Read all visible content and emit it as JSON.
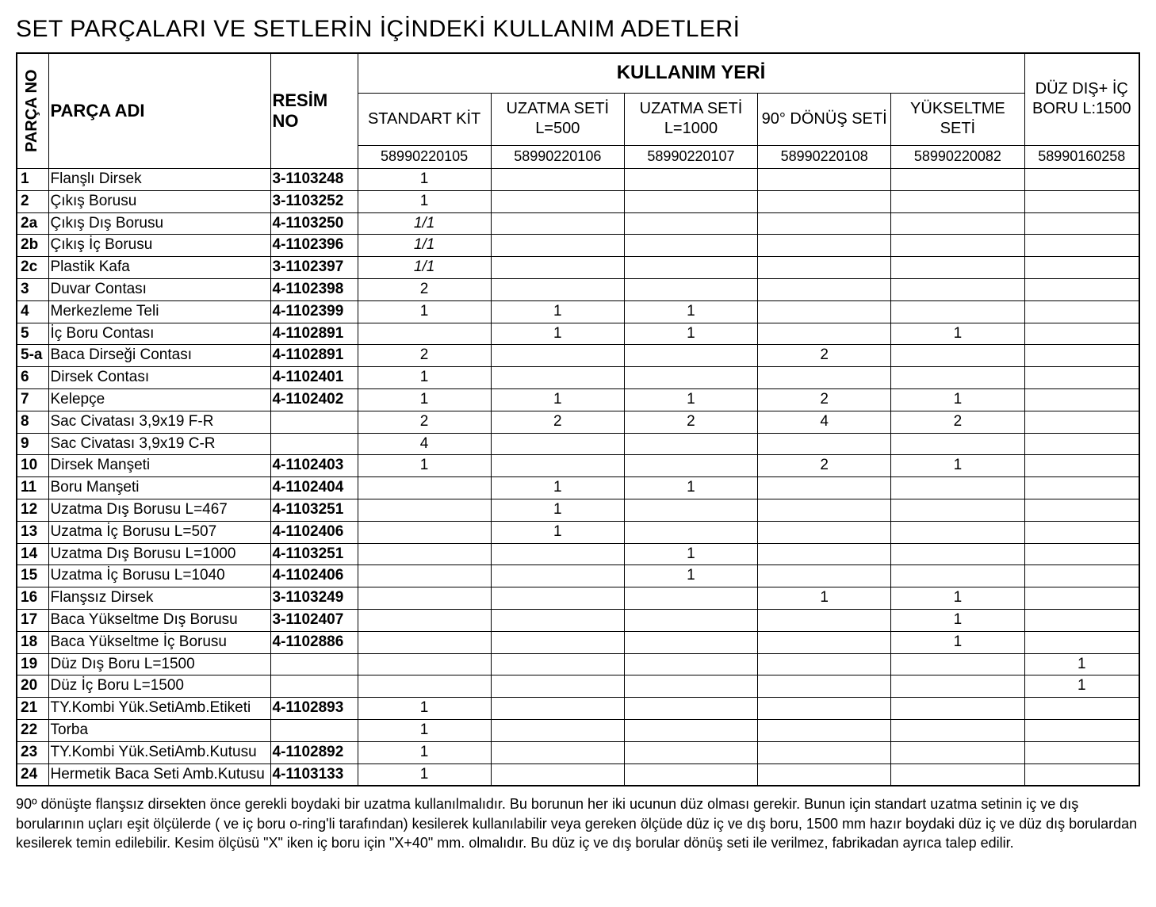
{
  "title": "SET PARÇALARI VE SETLERİN İÇİNDEKİ KULLANIM ADETLERİ",
  "headers": {
    "parca_no": "PARÇA NO",
    "parca_adi": "PARÇA ADI",
    "resim_no": "RESİM NO",
    "kullanim_yeri": "KULLANIM YERİ",
    "col1": "STANDART KİT",
    "col2": "UZATMA SETİ L=500",
    "col3": "UZATMA SETİ L=1000",
    "col4": "90° DÖNÜŞ SETİ",
    "col5": "YÜKSELTME SETİ",
    "col6": "DÜZ DIŞ+ İÇ BORU L:1500"
  },
  "codes": {
    "c1": "58990220105",
    "c2": "58990220106",
    "c3": "58990220107",
    "c4": "58990220108",
    "c5": "58990220082",
    "c6": "58990160258"
  },
  "rows": [
    {
      "no": "1",
      "name": "Flanşlı Dirsek",
      "resim": "3-1103248",
      "q": [
        "1",
        "",
        "",
        "",
        "",
        ""
      ]
    },
    {
      "no": "2",
      "name": "Çıkış Borusu",
      "resim": "3-1103252",
      "q": [
        "1",
        "",
        "",
        "",
        "",
        ""
      ]
    },
    {
      "no": "2a",
      "name": "Çıkış Dış Borusu",
      "resim": "4-1103250",
      "q": [
        "1/1",
        "",
        "",
        "",
        "",
        ""
      ],
      "ital": true
    },
    {
      "no": "2b",
      "name": "Çıkış İç Borusu",
      "resim": "4-1102396",
      "q": [
        "1/1",
        "",
        "",
        "",
        "",
        ""
      ],
      "ital": true
    },
    {
      "no": "2c",
      "name": "Plastik Kafa",
      "resim": "3-1102397",
      "q": [
        "1/1",
        "",
        "",
        "",
        "",
        ""
      ],
      "ital": true
    },
    {
      "no": "3",
      "name": "Duvar Contası",
      "resim": "4-1102398",
      "q": [
        "2",
        "",
        "",
        "",
        "",
        ""
      ]
    },
    {
      "no": "4",
      "name": "Merkezleme Teli",
      "resim": "4-1102399",
      "q": [
        "1",
        "1",
        "1",
        "",
        "",
        ""
      ]
    },
    {
      "no": "5",
      "name": "İç Boru Contası",
      "resim": "4-1102891",
      "q": [
        "",
        "1",
        "1",
        "",
        "1",
        ""
      ]
    },
    {
      "no": "5-a",
      "name": "Baca Dirseği Contası",
      "resim": "4-1102891",
      "q": [
        "2",
        "",
        "",
        "2",
        "",
        ""
      ]
    },
    {
      "no": "6",
      "name": "Dirsek Contası",
      "resim": "4-1102401",
      "q": [
        "1",
        "",
        "",
        "",
        "",
        ""
      ]
    },
    {
      "no": "7",
      "name": "Kelepçe",
      "resim": "4-1102402",
      "q": [
        "1",
        "1",
        "1",
        "2",
        "1",
        ""
      ]
    },
    {
      "no": "8",
      "name": "Sac Civatası 3,9x19 F-R",
      "resim": "",
      "q": [
        "2",
        "2",
        "2",
        "4",
        "2",
        ""
      ]
    },
    {
      "no": "9",
      "name": "Sac Civatası 3,9x19 C-R",
      "resim": "",
      "q": [
        "4",
        "",
        "",
        "",
        "",
        ""
      ]
    },
    {
      "no": "10",
      "name": "Dirsek Manşeti",
      "resim": "4-1102403",
      "q": [
        "1",
        "",
        "",
        "2",
        "1",
        ""
      ]
    },
    {
      "no": "11",
      "name": "Boru Manşeti",
      "resim": "4-1102404",
      "q": [
        "",
        "1",
        "1",
        "",
        "",
        ""
      ]
    },
    {
      "no": "12",
      "name": "Uzatma Dış Borusu L=467",
      "resim": "4-1103251",
      "q": [
        "",
        "1",
        "",
        "",
        "",
        ""
      ]
    },
    {
      "no": "13",
      "name": "Uzatma İç Borusu L=507",
      "resim": "4-1102406",
      "q": [
        "",
        "1",
        "",
        "",
        "",
        ""
      ]
    },
    {
      "no": "14",
      "name": "Uzatma Dış Borusu L=1000",
      "resim": "4-1103251",
      "q": [
        "",
        "",
        "1",
        "",
        "",
        ""
      ]
    },
    {
      "no": "15",
      "name": "Uzatma İç Borusu L=1040",
      "resim": "4-1102406",
      "q": [
        "",
        "",
        "1",
        "",
        "",
        ""
      ]
    },
    {
      "no": "16",
      "name": "Flanşsız Dirsek",
      "resim": "3-1103249",
      "q": [
        "",
        "",
        "",
        "1",
        "1",
        ""
      ]
    },
    {
      "no": "17",
      "name": "Baca Yükseltme Dış Borusu",
      "resim": "3-1102407",
      "q": [
        "",
        "",
        "",
        "",
        "1",
        ""
      ]
    },
    {
      "no": "18",
      "name": "Baca Yükseltme İç Borusu",
      "resim": "4-1102886",
      "q": [
        "",
        "",
        "",
        "",
        "1",
        ""
      ]
    },
    {
      "no": "19",
      "name": "Düz Dış Boru L=1500",
      "resim": "",
      "q": [
        "",
        "",
        "",
        "",
        "",
        "1"
      ]
    },
    {
      "no": "20",
      "name": "Düz İç Boru L=1500",
      "resim": "",
      "q": [
        "",
        "",
        "",
        "",
        "",
        "1"
      ]
    },
    {
      "no": "21",
      "name": "TY.Kombi Yük.SetiAmb.Etiketi",
      "resim": "4-1102893",
      "q": [
        "1",
        "",
        "",
        "",
        "",
        ""
      ]
    },
    {
      "no": "22",
      "name": "Torba",
      "resim": "",
      "q": [
        "1",
        "",
        "",
        "",
        "",
        ""
      ]
    },
    {
      "no": "23",
      "name": "TY.Kombi Yük.SetiAmb.Kutusu",
      "resim": "4-1102892",
      "q": [
        "1",
        "",
        "",
        "",
        "",
        ""
      ]
    },
    {
      "no": "24",
      "name": "Hermetik Baca Seti Amb.Kutusu",
      "resim": "4-1103133",
      "q": [
        "1",
        "",
        "",
        "",
        "",
        ""
      ]
    }
  ],
  "footnote": "90º dönüşte flanşsız dirsekten önce gerekli boydaki bir uzatma kullanılmalıdır. Bu borunun her iki ucunun düz olması gerekir. Bunun için standart uzatma setinin iç ve dış borularının uçları eşit ölçülerde ( ve iç boru o-ring'li tarafından) kesilerek kullanılabilir veya gereken ölçüde düz iç ve dış boru, 1500 mm hazır boydaki düz iç ve düz dış borulardan kesilerek temin edilebilir. Kesim ölçüsü \"X\" iken iç boru için \"X+40\" mm. olmalıdır. Bu düz iç ve dış borular dönüş seti ile verilmez, fabrikadan ayrıca talep edilir."
}
